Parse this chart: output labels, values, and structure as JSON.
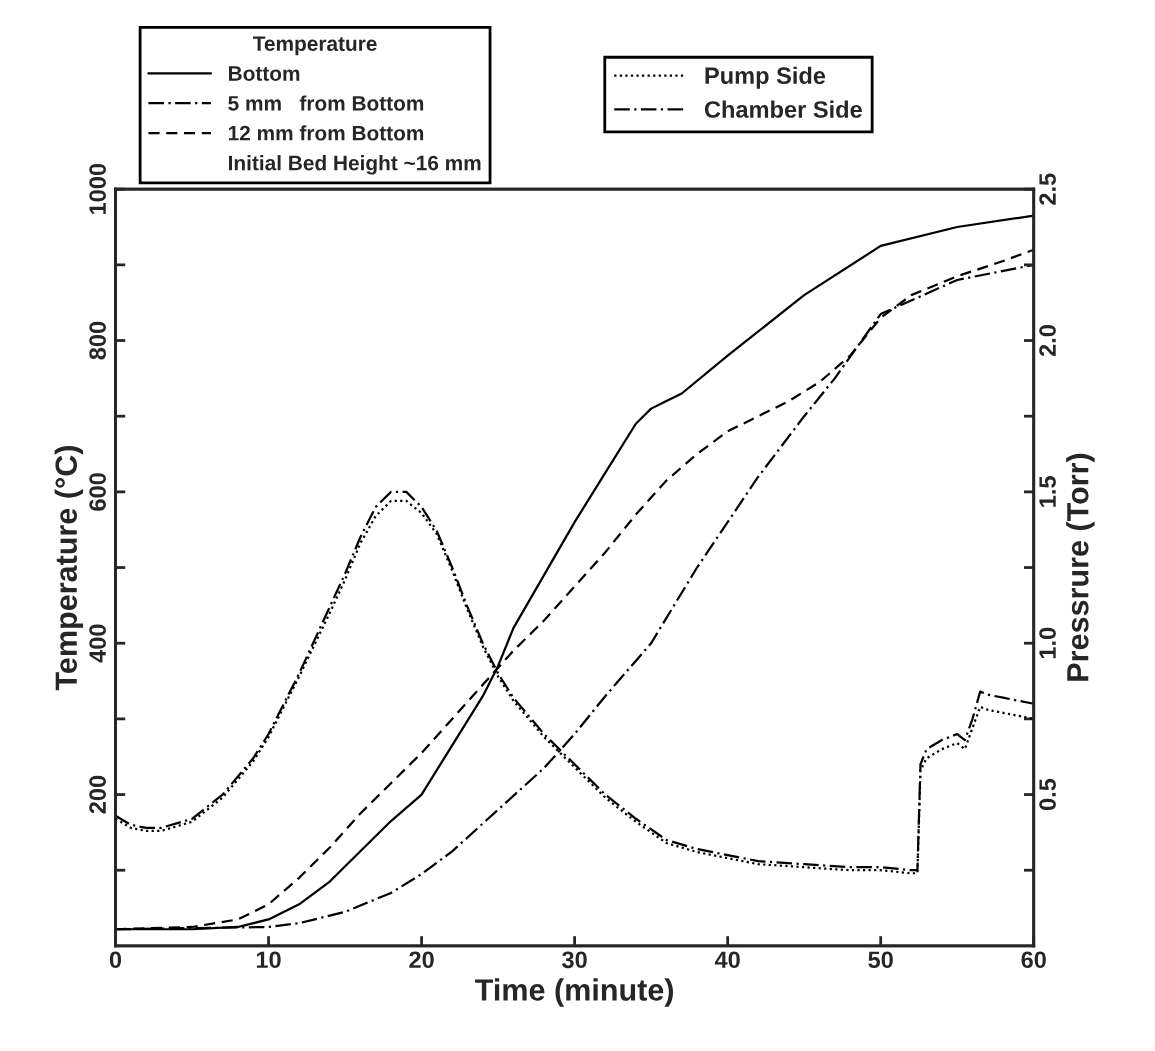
{
  "chart_data": {
    "type": "line",
    "xlabel": "Time (minute)",
    "ylabel": "Temperature (°C)",
    "y2label": "Pressrure (Torr)",
    "legend_title": "Temperature",
    "legend": "top",
    "grid": false,
    "xlim": [
      0,
      60
    ],
    "xticks": [
      0,
      10,
      20,
      30,
      40,
      50,
      60
    ],
    "ylim": [
      0,
      1000
    ],
    "yticks": [
      {
        "value": 100,
        "label": null
      },
      200,
      {
        "value": 300,
        "label": null
      },
      400,
      {
        "value": 500,
        "label": null
      },
      600,
      {
        "value": 700,
        "label": null
      },
      800,
      {
        "value": 900,
        "label": null
      },
      1000
    ],
    "y2lim": [
      0,
      2.5
    ],
    "y2ticks": [
      {
        "value": 0.25,
        "label": null
      },
      0.5,
      {
        "value": 0.75,
        "label": null
      },
      {
        "value": 1,
        "label": "1.0"
      },
      {
        "value": 1.25,
        "label": null
      },
      1.5,
      {
        "value": 1.75,
        "label": null
      },
      {
        "value": 2,
        "label": "2.0"
      },
      {
        "value": 2.25,
        "label": null
      },
      2.5
    ],
    "annotations": [
      "Initial Bed Height ~16 mm"
    ],
    "series": [
      {
        "name": "Bottom",
        "color": "#000000",
        "line_style": "solid",
        "x": [
          0,
          5,
          8,
          10,
          12,
          14,
          16,
          18,
          20,
          22,
          24,
          25,
          26,
          27,
          28,
          30,
          32,
          34,
          35,
          36,
          37,
          40,
          45,
          50,
          55,
          60
        ],
        "values": [
          22,
          22,
          25,
          35,
          55,
          85,
          125,
          165,
          200,
          265,
          330,
          370,
          420,
          455,
          490,
          560,
          625,
          690,
          710,
          720,
          730,
          780,
          860,
          925,
          950,
          965
        ]
      },
      {
        "name": "5 mm   from Bottom",
        "color": "#000000",
        "line_style": "dashdot",
        "x": [
          0,
          10,
          12,
          15,
          18,
          20,
          22,
          25,
          28,
          30,
          32,
          35,
          38,
          40,
          42,
          45,
          47,
          50,
          55,
          60
        ],
        "values": [
          22,
          25,
          30,
          45,
          70,
          95,
          125,
          180,
          235,
          280,
          330,
          400,
          500,
          560,
          620,
          700,
          750,
          835,
          880,
          900
        ]
      },
      {
        "name": "12 mm from Bottom",
        "color": "#000000",
        "line_style": "dashed",
        "x": [
          0,
          5,
          8,
          10,
          12,
          14,
          16,
          18,
          20,
          22,
          24,
          26,
          28,
          30,
          32,
          34,
          36,
          38,
          40,
          42,
          44,
          46,
          48,
          50,
          52,
          55,
          58,
          60
        ],
        "values": [
          22,
          25,
          35,
          55,
          90,
          130,
          175,
          215,
          255,
          300,
          345,
          390,
          430,
          475,
          520,
          570,
          615,
          650,
          680,
          700,
          720,
          745,
          780,
          830,
          860,
          885,
          905,
          920
        ]
      },
      {
        "name": "Pump Side",
        "color": "#000000",
        "line_style": "dotted",
        "axis": "y2",
        "x": [
          0,
          1,
          2,
          3,
          5,
          7,
          9,
          10,
          12,
          14,
          15,
          16,
          17,
          18,
          19,
          20,
          21,
          22,
          23,
          24,
          25,
          26,
          28,
          30,
          32,
          34,
          36,
          38,
          40,
          42,
          45,
          48,
          50,
          52,
          52.4,
          52.6,
          53,
          54,
          55,
          55.5,
          56,
          56.5,
          57,
          58,
          60
        ],
        "values": [
          0.42,
          0.39,
          0.38,
          0.38,
          0.41,
          0.49,
          0.61,
          0.69,
          0.89,
          1.1,
          1.21,
          1.33,
          1.42,
          1.47,
          1.47,
          1.43,
          1.36,
          1.24,
          1.11,
          0.99,
          0.89,
          0.81,
          0.69,
          0.59,
          0.49,
          0.41,
          0.34,
          0.31,
          0.29,
          0.27,
          0.26,
          0.25,
          0.25,
          0.24,
          0.24,
          0.58,
          0.62,
          0.65,
          0.67,
          0.65,
          0.72,
          0.79,
          0.78,
          0.77,
          0.75
        ]
      },
      {
        "name": "Chamber Side",
        "color": "#000000",
        "line_style": "dashdot",
        "axis": "y2",
        "x": [
          0,
          1,
          2,
          3,
          5,
          7,
          9,
          10,
          12,
          14,
          15,
          16,
          17,
          18,
          19,
          20,
          21,
          22,
          23,
          24,
          25,
          26,
          28,
          30,
          32,
          34,
          36,
          38,
          40,
          42,
          45,
          48,
          50,
          52,
          52.4,
          52.6,
          53,
          54,
          55,
          55.5,
          56,
          56.5,
          57,
          58,
          60
        ],
        "values": [
          0.43,
          0.4,
          0.39,
          0.39,
          0.42,
          0.5,
          0.62,
          0.7,
          0.9,
          1.12,
          1.23,
          1.35,
          1.45,
          1.5,
          1.5,
          1.45,
          1.37,
          1.25,
          1.12,
          1.0,
          0.9,
          0.82,
          0.7,
          0.6,
          0.5,
          0.42,
          0.35,
          0.32,
          0.3,
          0.28,
          0.27,
          0.26,
          0.26,
          0.25,
          0.25,
          0.6,
          0.65,
          0.68,
          0.7,
          0.68,
          0.75,
          0.84,
          0.83,
          0.82,
          0.8
        ]
      }
    ]
  }
}
